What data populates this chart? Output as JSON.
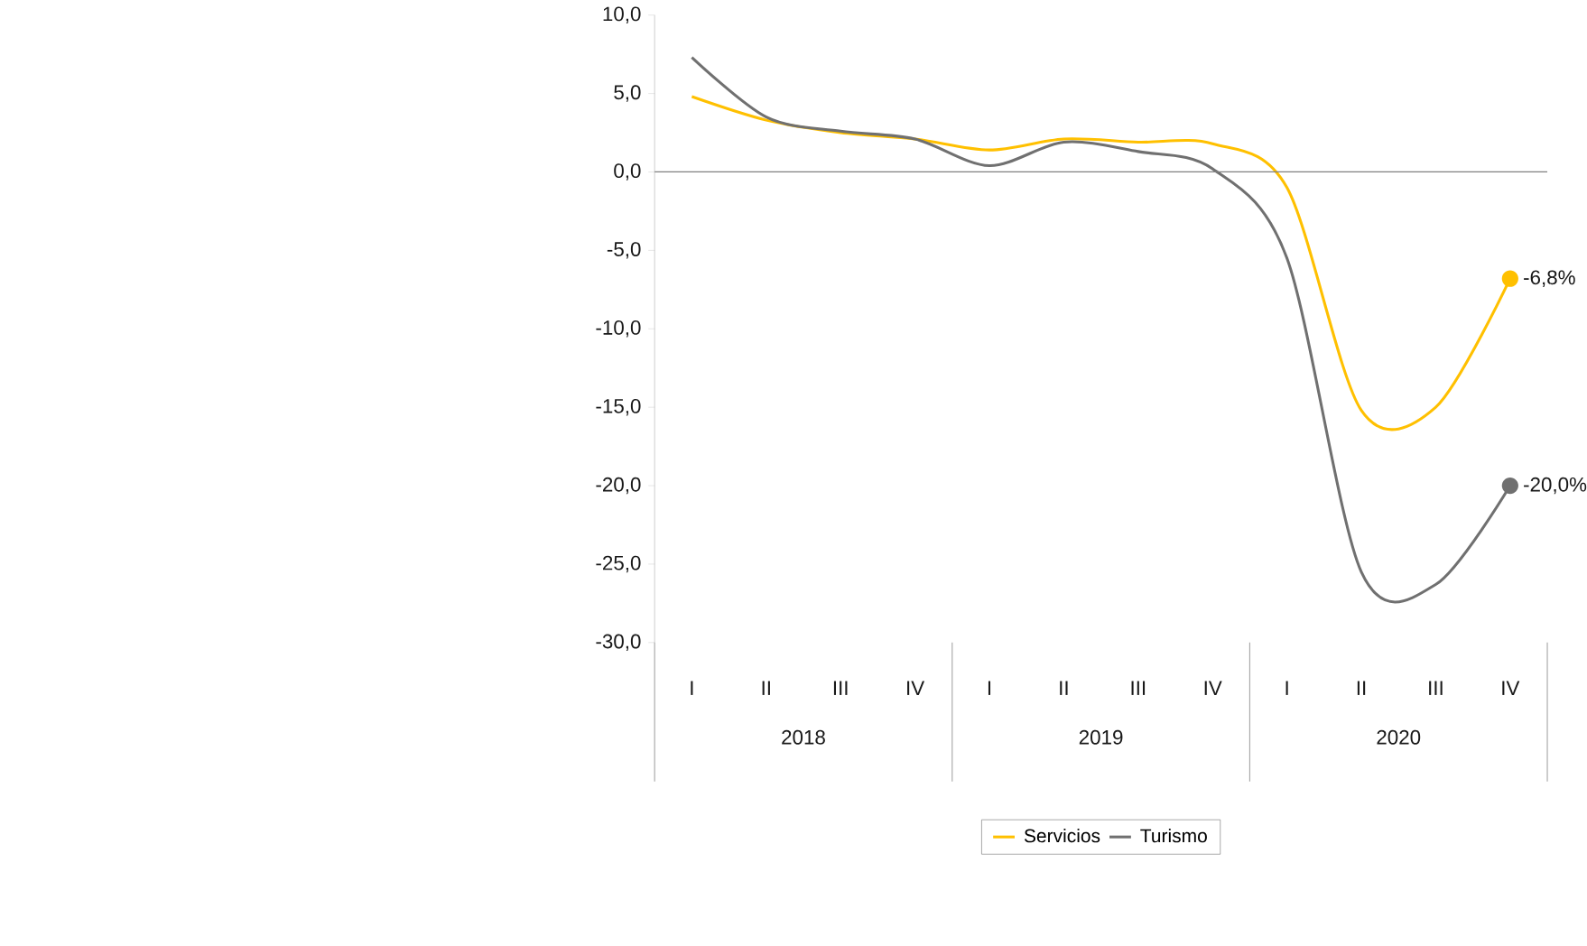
{
  "chart_data": {
    "type": "line",
    "categories": [
      "I",
      "II",
      "III",
      "IV",
      "I",
      "II",
      "III",
      "IV",
      "I",
      "II",
      "III",
      "IV"
    ],
    "series": [
      {
        "name": "Servicios",
        "color": "#ffc000",
        "values": [
          4.8,
          3.3,
          2.5,
          2.1,
          1.4,
          2.1,
          1.9,
          1.8,
          -1.0,
          -15.2,
          -15.0,
          -6.8
        ],
        "value_labels": [
          null,
          null,
          null,
          null,
          null,
          null,
          null,
          null,
          null,
          null,
          null,
          "-6,8%"
        ]
      },
      {
        "name": "Turismo",
        "color": "#707070",
        "values": [
          7.3,
          3.5,
          2.6,
          2.1,
          0.4,
          1.9,
          1.3,
          0.2,
          -5.5,
          -25.5,
          -26.3,
          -20.0
        ],
        "value_labels": [
          null,
          null,
          null,
          null,
          null,
          null,
          null,
          null,
          null,
          null,
          null,
          "-20,0%"
        ]
      }
    ],
    "ylim": [
      -30,
      10
    ],
    "yticks": [
      {
        "value": -30,
        "label": "-30,0"
      },
      {
        "value": -25,
        "label": "-25,0"
      },
      {
        "value": -20,
        "label": "-20,0"
      },
      {
        "value": -15,
        "label": "-15,0"
      },
      {
        "value": -10,
        "label": "-10,0"
      },
      {
        "value": -5,
        "label": "-5,0"
      },
      {
        "value": 0,
        "label": "0,0"
      },
      {
        "value": 5,
        "label": "5,0"
      },
      {
        "value": 10,
        "label": "10,0"
      }
    ],
    "ref_lines": [
      {
        "axis": "y",
        "value": 0,
        "color": "#808080"
      }
    ],
    "annotations": [
      "2018",
      "2019",
      "2020"
    ],
    "legend": "bottom",
    "grid": false,
    "line_style": "solid",
    "marker": "none"
  }
}
